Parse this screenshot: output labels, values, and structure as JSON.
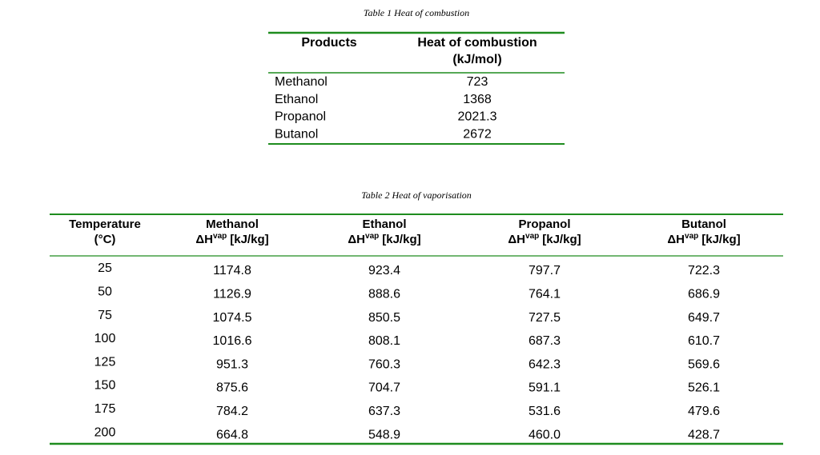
{
  "table1": {
    "caption": "Table 1 Heat of combustion",
    "header": {
      "products": "Products",
      "heat": [
        "Heat of combustion",
        "(kJ/mol)"
      ]
    },
    "rows": [
      [
        "Methanol",
        "723"
      ],
      [
        "Ethanol",
        "1368"
      ],
      [
        "Propanol",
        "2021.3"
      ],
      [
        "Butanol",
        "2672"
      ]
    ]
  },
  "table2": {
    "caption": "Table 2 Heat of vaporisation",
    "temperature_header": [
      "Temperature",
      "(°C)"
    ],
    "columns": [
      {
        "name": "Methanol",
        "symbol": "ΔH",
        "superscript": "vap",
        "unit": "[kJ/kg]"
      },
      {
        "name": "Ethanol",
        "symbol": "ΔH",
        "superscript": "vap",
        "unit": "[kJ/kg]"
      },
      {
        "name": "Propanol",
        "symbol": "ΔH",
        "superscript": "vap",
        "unit": "[kJ/kg]"
      },
      {
        "name": "Butanol",
        "symbol": "ΔH",
        "superscript": "vap",
        "unit": "[kJ/kg]"
      }
    ],
    "rows": [
      [
        "25",
        "1174.8",
        "923.4",
        "797.7",
        "722.3"
      ],
      [
        "50",
        "1126.9",
        "888.6",
        "764.1",
        "686.9"
      ],
      [
        "75",
        "1074.5",
        "850.5",
        "727.5",
        "649.7"
      ],
      [
        "100",
        "1016.6",
        "808.1",
        "687.3",
        "610.7"
      ],
      [
        "125",
        "951.3",
        "760.3",
        "642.3",
        "569.6"
      ],
      [
        "150",
        "875.6",
        "704.7",
        "591.1",
        "526.1"
      ],
      [
        "175",
        "784.2",
        "637.3",
        "531.6",
        "479.6"
      ],
      [
        "200",
        "664.8",
        "548.9",
        "460.0",
        "428.7"
      ]
    ]
  }
}
